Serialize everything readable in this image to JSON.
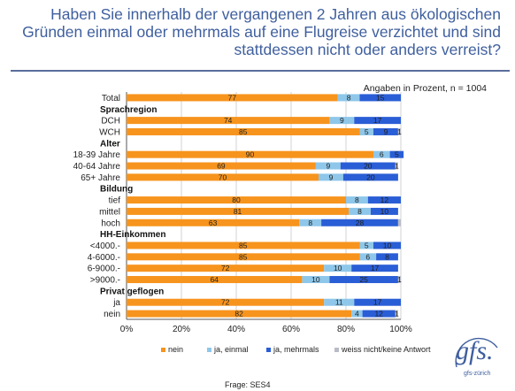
{
  "title": "Haben Sie innerhalb der vergangenen 2 Jahren aus ökologischen Gründen einmal oder mehrmals auf eine Flugreise verzichtet und sind stattdessen nicht oder anders verreist?",
  "note": "Angaben in Prozent, n = 1004",
  "source": "Frage: SES4",
  "logo": {
    "text": "gfs.",
    "sub": "gfs-zürich"
  },
  "chart_data": {
    "type": "bar",
    "orientation": "horizontal",
    "stacked": true,
    "xlim": [
      0,
      100
    ],
    "x_ticks": [
      "0%",
      "20%",
      "40%",
      "60%",
      "80%",
      "100%"
    ],
    "grid": true,
    "legend_position": "bottom",
    "colors": {
      "nein": "#f7941d",
      "ja, einmal": "#8ec7ea",
      "ja, mehrmals": "#2a5ed6",
      "weiss nicht/keine Antwort": "#b9bcc6"
    },
    "series_names": [
      "nein",
      "ja, einmal",
      "ja, mehrmals",
      "weiss nicht/keine Antwort"
    ],
    "rows": [
      {
        "kind": "bar",
        "label": "Total",
        "values": [
          77,
          8,
          15,
          0
        ],
        "labels": [
          "77",
          "8",
          "15",
          ""
        ]
      },
      {
        "kind": "header",
        "label": "Sprachregion"
      },
      {
        "kind": "bar",
        "label": "DCH",
        "values": [
          74,
          9,
          17,
          0
        ],
        "labels": [
          "74",
          "9",
          "17",
          ""
        ]
      },
      {
        "kind": "bar",
        "label": "WCH",
        "values": [
          85,
          5,
          9,
          1
        ],
        "labels": [
          "85",
          "5",
          "9",
          "1"
        ]
      },
      {
        "kind": "header",
        "label": "Alter"
      },
      {
        "kind": "bar",
        "label": "18-39 Jahre",
        "values": [
          90,
          6,
          5,
          0
        ],
        "labels": [
          "90",
          "6",
          "5",
          ""
        ]
      },
      {
        "kind": "bar",
        "label": "40-64 Jahre",
        "values": [
          69,
          9,
          20,
          1
        ],
        "labels": [
          "69",
          "9",
          "20",
          "1"
        ]
      },
      {
        "kind": "bar",
        "label": "65+ Jahre",
        "values": [
          70,
          9,
          20,
          0
        ],
        "labels": [
          "70",
          "9",
          "20",
          ""
        ]
      },
      {
        "kind": "header",
        "label": "Bildung"
      },
      {
        "kind": "bar",
        "label": "tief",
        "values": [
          80,
          8,
          12,
          0
        ],
        "labels": [
          "80",
          "8",
          "12",
          ""
        ]
      },
      {
        "kind": "bar",
        "label": "mittel",
        "values": [
          81,
          8,
          10,
          0
        ],
        "labels": [
          "81",
          "8",
          "10",
          ""
        ]
      },
      {
        "kind": "bar",
        "label": "hoch",
        "values": [
          63,
          8,
          28,
          1
        ],
        "labels": [
          "63",
          "8",
          "28",
          ""
        ]
      },
      {
        "kind": "header",
        "label": "HH-Einkommen"
      },
      {
        "kind": "bar",
        "label": "<4000.-",
        "values": [
          85,
          5,
          10,
          0
        ],
        "labels": [
          "85",
          "5",
          "10",
          ""
        ]
      },
      {
        "kind": "bar",
        "label": "4-6000.-",
        "values": [
          85,
          6,
          8,
          0
        ],
        "labels": [
          "85",
          "6",
          "8",
          ""
        ]
      },
      {
        "kind": "bar",
        "label": "6-9000.-",
        "values": [
          72,
          10,
          17,
          0
        ],
        "labels": [
          "72",
          "10",
          "17",
          ""
        ]
      },
      {
        "kind": "bar",
        "label": ">9000.-",
        "values": [
          64,
          10,
          25,
          1
        ],
        "labels": [
          "64",
          "10",
          "25",
          "1"
        ]
      },
      {
        "kind": "header",
        "label": "Privat geflogen"
      },
      {
        "kind": "bar",
        "label": "ja",
        "values": [
          72,
          11,
          17,
          0
        ],
        "labels": [
          "72",
          "11",
          "17",
          ""
        ]
      },
      {
        "kind": "bar",
        "label": "nein",
        "values": [
          82,
          4,
          12,
          1
        ],
        "labels": [
          "82",
          "4",
          "12",
          "1"
        ]
      }
    ]
  }
}
